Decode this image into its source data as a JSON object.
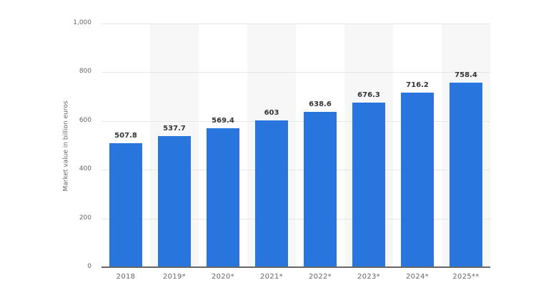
{
  "chart_data": {
    "type": "bar",
    "title": "",
    "xlabel": "",
    "ylabel": "Market value in billion euros",
    "categories": [
      "2018",
      "2019*",
      "2020*",
      "2021*",
      "2022*",
      "2023*",
      "2024*",
      "2025**"
    ],
    "values": [
      507.8,
      537.7,
      569.4,
      603,
      638.6,
      676.3,
      716.2,
      758.4
    ],
    "value_labels": [
      "507.8",
      "537.7",
      "569.4",
      "603",
      "638.6",
      "676.3",
      "716.2",
      "758.4"
    ],
    "ylim": [
      0,
      1000
    ],
    "yticks": [
      0,
      200,
      400,
      600,
      800,
      1000
    ],
    "ytick_labels": [
      "0",
      "200",
      "400",
      "600",
      "800",
      "1,000"
    ],
    "grid": true,
    "legend": null,
    "bar_color": "#2876dd",
    "stripe_color": "#f7f7f7"
  }
}
